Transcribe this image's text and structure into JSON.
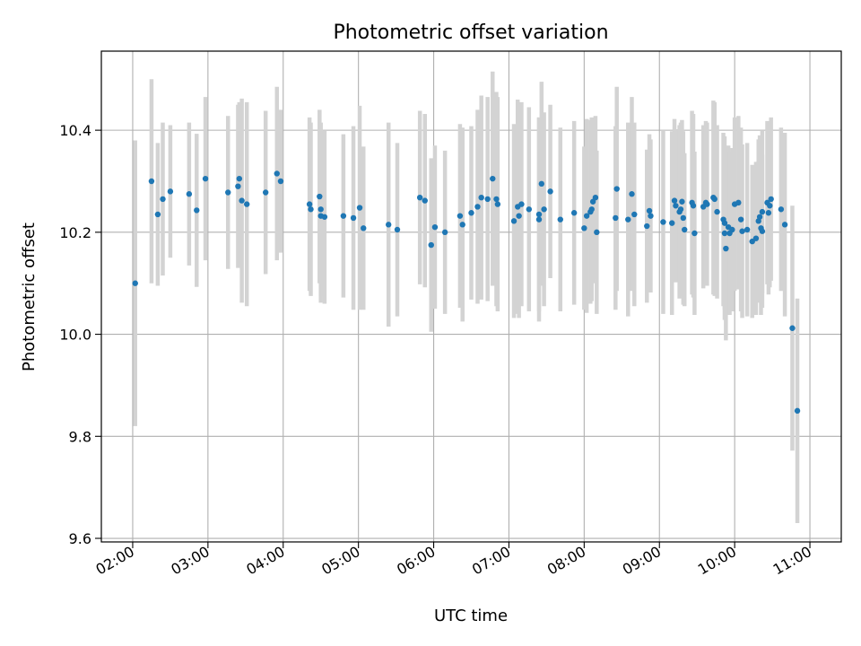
{
  "chart_data": {
    "type": "scatter",
    "title": "Photometric offset variation",
    "xlabel": "UTC time",
    "ylabel": "Photometric offset",
    "grid": true,
    "xlim": [
      "01:35",
      "11:25"
    ],
    "ylim": [
      9.593,
      10.555
    ],
    "x_ticks": [
      "02:00",
      "03:00",
      "04:00",
      "05:00",
      "06:00",
      "07:00",
      "08:00",
      "09:00",
      "10:00",
      "11:00"
    ],
    "y_ticks": [
      9.6,
      9.8,
      10.0,
      10.2,
      10.4
    ],
    "y_tick_labels": [
      "9.6",
      "9.8",
      "10.0",
      "10.2",
      "10.4"
    ],
    "colors": {
      "point": "#1f77b4",
      "errorbar": "#d3d3d3",
      "grid": "#b0b0b0"
    },
    "points": [
      [
        "02:02",
        10.1,
        0.28
      ],
      [
        "02:15",
        10.3,
        0.2
      ],
      [
        "02:20",
        10.235,
        0.14
      ],
      [
        "02:24",
        10.265,
        0.15
      ],
      [
        "02:30",
        10.28,
        0.13
      ],
      [
        "02:45",
        10.275,
        0.14
      ],
      [
        "02:51",
        10.243,
        0.15
      ],
      [
        "02:58",
        10.305,
        0.16
      ],
      [
        "03:16",
        10.278,
        0.15
      ],
      [
        "03:24",
        10.29,
        0.16
      ],
      [
        "03:25",
        10.305,
        0.15
      ],
      [
        "03:27",
        10.262,
        0.2
      ],
      [
        "03:31",
        10.255,
        0.2
      ],
      [
        "03:46",
        10.278,
        0.16
      ],
      [
        "03:55",
        10.315,
        0.17
      ],
      [
        "03:58",
        10.3,
        0.14
      ],
      [
        "04:21",
        10.255,
        0.17
      ],
      [
        "04:22",
        10.245,
        0.17
      ],
      [
        "04:29",
        10.27,
        0.17
      ],
      [
        "04:30",
        10.245,
        0.17
      ],
      [
        "04:30",
        10.232,
        0.17
      ],
      [
        "04:33",
        10.23,
        0.17
      ],
      [
        "04:48",
        10.232,
        0.16
      ],
      [
        "04:56",
        10.228,
        0.18
      ],
      [
        "05:01",
        10.248,
        0.2
      ],
      [
        "05:04",
        10.208,
        0.16
      ],
      [
        "05:24",
        10.215,
        0.2
      ],
      [
        "05:31",
        10.205,
        0.17
      ],
      [
        "05:49",
        10.268,
        0.17
      ],
      [
        "05:53",
        10.262,
        0.17
      ],
      [
        "05:58",
        10.175,
        0.17
      ],
      [
        "06:01",
        10.21,
        0.16
      ],
      [
        "06:09",
        10.2,
        0.16
      ],
      [
        "06:21",
        10.232,
        0.18
      ],
      [
        "06:23",
        10.215,
        0.19
      ],
      [
        "06:30",
        10.238,
        0.17
      ],
      [
        "06:35",
        10.25,
        0.19
      ],
      [
        "06:38",
        10.268,
        0.2
      ],
      [
        "06:43",
        10.265,
        0.2
      ],
      [
        "06:47",
        10.305,
        0.21
      ],
      [
        "06:50",
        10.265,
        0.21
      ],
      [
        "06:51",
        10.255,
        0.21
      ],
      [
        "07:04",
        10.222,
        0.19
      ],
      [
        "07:07",
        10.25,
        0.21
      ],
      [
        "07:08",
        10.232,
        0.2
      ],
      [
        "07:10",
        10.255,
        0.2
      ],
      [
        "07:16",
        10.245,
        0.2
      ],
      [
        "07:24",
        10.225,
        0.2
      ],
      [
        "07:24",
        10.235,
        0.19
      ],
      [
        "07:26",
        10.295,
        0.2
      ],
      [
        "07:28",
        10.245,
        0.19
      ],
      [
        "07:33",
        10.28,
        0.17
      ],
      [
        "07:41",
        10.225,
        0.18
      ],
      [
        "07:52",
        10.238,
        0.18
      ],
      [
        "08:00",
        10.208,
        0.16
      ],
      [
        "08:02",
        10.232,
        0.19
      ],
      [
        "08:05",
        10.24,
        0.18
      ],
      [
        "08:06",
        10.245,
        0.18
      ],
      [
        "08:07",
        10.26,
        0.16
      ],
      [
        "08:09",
        10.268,
        0.16
      ],
      [
        "08:10",
        10.2,
        0.16
      ],
      [
        "08:25",
        10.228,
        0.18
      ],
      [
        "08:26",
        10.285,
        0.2
      ],
      [
        "08:35",
        10.225,
        0.19
      ],
      [
        "08:38",
        10.275,
        0.19
      ],
      [
        "08:40",
        10.235,
        0.18
      ],
      [
        "08:50",
        10.212,
        0.15
      ],
      [
        "08:52",
        10.242,
        0.15
      ],
      [
        "08:53",
        10.232,
        0.15
      ],
      [
        "09:03",
        10.22,
        0.18
      ],
      [
        "09:10",
        10.218,
        0.18
      ],
      [
        "09:12",
        10.262,
        0.16
      ],
      [
        "09:13",
        10.252,
        0.15
      ],
      [
        "09:16",
        10.24,
        0.17
      ],
      [
        "09:17",
        10.245,
        0.17
      ],
      [
        "09:18",
        10.26,
        0.16
      ],
      [
        "09:19",
        10.228,
        0.17
      ],
      [
        "09:20",
        10.205,
        0.15
      ],
      [
        "09:26",
        10.258,
        0.18
      ],
      [
        "09:27",
        10.252,
        0.18
      ],
      [
        "09:28",
        10.198,
        0.16
      ],
      [
        "09:35",
        10.25,
        0.16
      ],
      [
        "09:37",
        10.258,
        0.16
      ],
      [
        "09:38",
        10.255,
        0.16
      ],
      [
        "09:43",
        10.268,
        0.19
      ],
      [
        "09:44",
        10.265,
        0.19
      ],
      [
        "09:46",
        10.24,
        0.17
      ],
      [
        "09:51",
        10.225,
        0.17
      ],
      [
        "09:52",
        10.218,
        0.17
      ],
      [
        "09:52",
        10.198,
        0.17
      ],
      [
        "09:53",
        10.168,
        0.18
      ],
      [
        "09:55",
        10.21,
        0.16
      ],
      [
        "09:56",
        10.198,
        0.16
      ],
      [
        "09:58",
        10.205,
        0.16
      ],
      [
        "10:00",
        10.255,
        0.17
      ],
      [
        "10:03",
        10.258,
        0.17
      ],
      [
        "10:05",
        10.225,
        0.18
      ],
      [
        "10:06",
        10.202,
        0.17
      ],
      [
        "10:10",
        10.205,
        0.17
      ],
      [
        "10:14",
        10.182,
        0.15
      ],
      [
        "10:17",
        10.188,
        0.15
      ],
      [
        "10:19",
        10.222,
        0.16
      ],
      [
        "10:20",
        10.23,
        0.16
      ],
      [
        "10:21",
        10.208,
        0.17
      ],
      [
        "10:22",
        10.24,
        0.16
      ],
      [
        "10:22",
        10.202,
        0.15
      ],
      [
        "10:26",
        10.258,
        0.16
      ],
      [
        "10:27",
        10.238,
        0.16
      ],
      [
        "10:28",
        10.252,
        0.16
      ],
      [
        "10:29",
        10.265,
        0.16
      ],
      [
        "10:37",
        10.245,
        0.16
      ],
      [
        "10:40",
        10.215,
        0.18
      ],
      [
        "10:46",
        10.012,
        0.24
      ],
      [
        "10:50",
        9.85,
        0.22
      ]
    ]
  }
}
